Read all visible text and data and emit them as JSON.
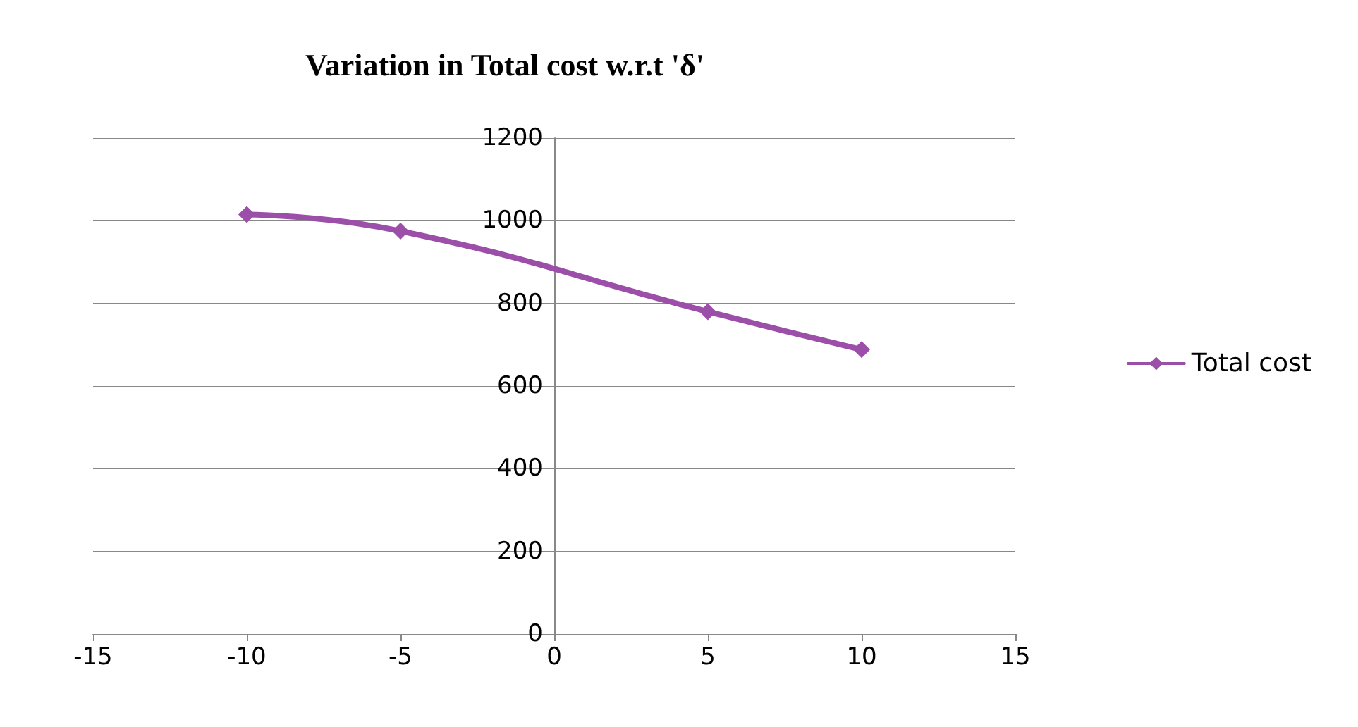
{
  "chart_data": {
    "type": "line",
    "title": "Variation in Total cost w.r.t 'δ'",
    "x": [
      -10,
      -5,
      5,
      10
    ],
    "series": [
      {
        "name": "Total cost",
        "color": "#9b4fa8",
        "values": [
          1015,
          975,
          780,
          688
        ]
      }
    ],
    "xlim": [
      -15,
      15
    ],
    "xticks": [
      -15,
      -10,
      -5,
      0,
      5,
      10,
      15
    ],
    "ylim": [
      0,
      1200
    ],
    "yticks": [
      0,
      200,
      400,
      600,
      800,
      1000,
      1200
    ],
    "grid": "y",
    "legend": "right",
    "marker": "diamond",
    "line_style": "solid"
  }
}
